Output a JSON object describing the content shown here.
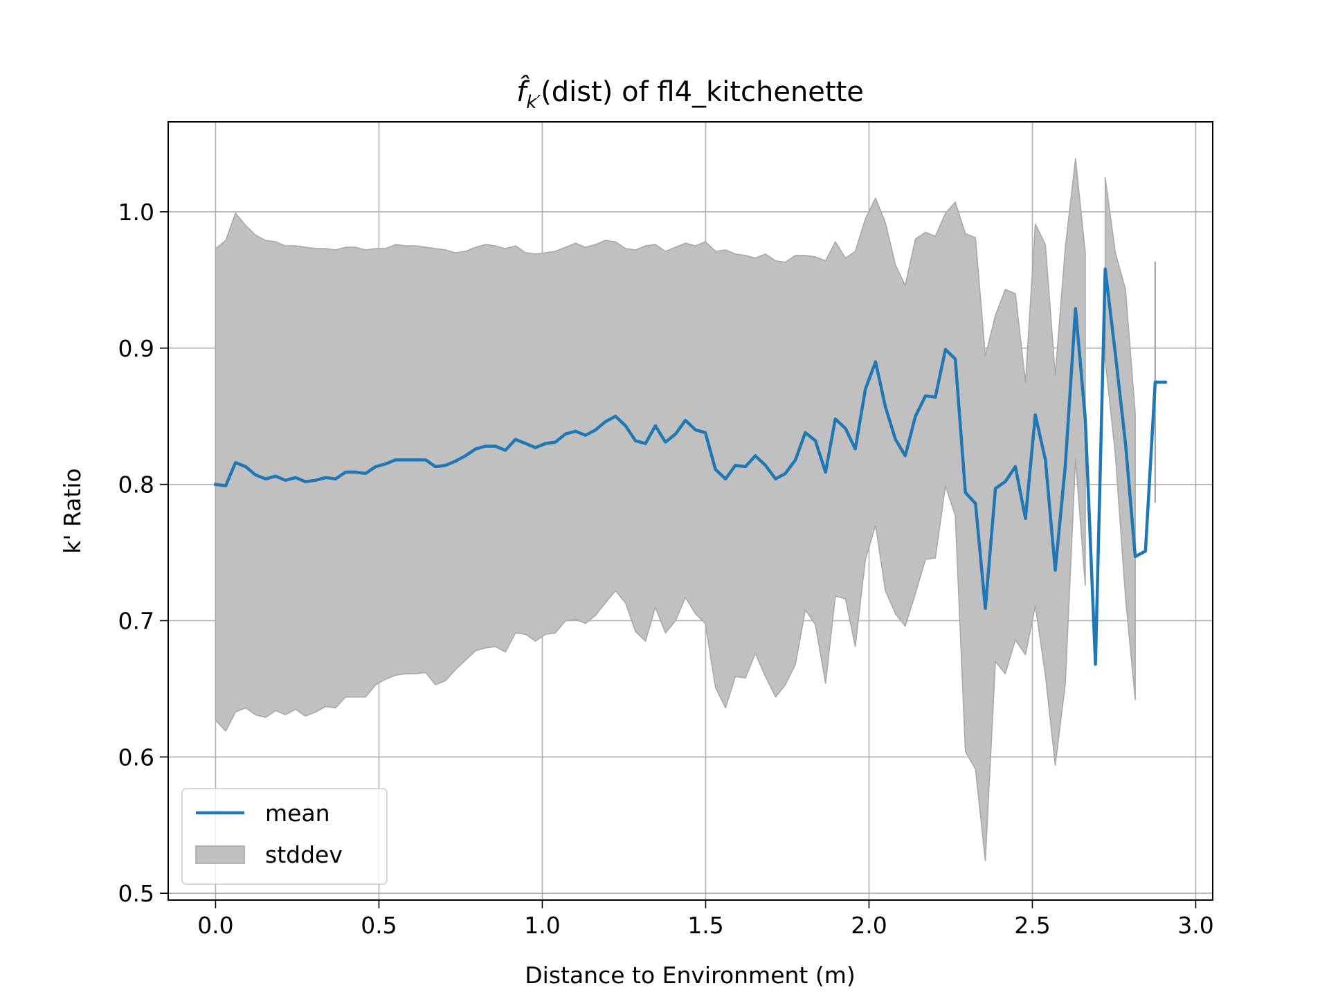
{
  "chart_data": {
    "type": "line",
    "title": {
      "symbol": "f̂",
      "subscript": "k′",
      "text": "(dist) of fl4_kitchenette"
    },
    "xlabel": "Distance to Environment (m)",
    "ylabel": "k' Ratio",
    "x": [
      0,
      0.031,
      0.061,
      0.092,
      0.122,
      0.153,
      0.184,
      0.214,
      0.245,
      0.275,
      0.306,
      0.337,
      0.367,
      0.398,
      0.428,
      0.459,
      0.49,
      0.52,
      0.551,
      0.581,
      0.612,
      0.643,
      0.673,
      0.704,
      0.734,
      0.765,
      0.796,
      0.826,
      0.857,
      0.887,
      0.918,
      0.949,
      0.979,
      1.01,
      1.04,
      1.071,
      1.102,
      1.132,
      1.163,
      1.193,
      1.224,
      1.255,
      1.285,
      1.316,
      1.346,
      1.377,
      1.408,
      1.438,
      1.469,
      1.499,
      1.53,
      1.561,
      1.591,
      1.622,
      1.652,
      1.683,
      1.714,
      1.744,
      1.775,
      1.805,
      1.836,
      1.867,
      1.897,
      1.928,
      1.958,
      1.989,
      2.02,
      2.05,
      2.081,
      2.111,
      2.142,
      2.173,
      2.203,
      2.234,
      2.264,
      2.295,
      2.326,
      2.356,
      2.387,
      2.417,
      2.448,
      2.479,
      2.509,
      2.54,
      2.57,
      2.601,
      2.632,
      2.662,
      2.693,
      2.723,
      2.754,
      2.785,
      2.815,
      2.846,
      2.876,
      2.907
    ],
    "series": [
      {
        "name": "mean",
        "color": "#1f77b4",
        "values": [
          0.8,
          0.799,
          0.816,
          0.813,
          0.807,
          0.804,
          0.806,
          0.803,
          0.805,
          0.802,
          0.803,
          0.805,
          0.804,
          0.809,
          0.809,
          0.808,
          0.813,
          0.815,
          0.818,
          0.818,
          0.818,
          0.818,
          0.813,
          0.814,
          0.817,
          0.821,
          0.826,
          0.828,
          0.828,
          0.825,
          0.833,
          0.83,
          0.827,
          0.83,
          0.831,
          0.837,
          0.839,
          0.836,
          0.84,
          0.846,
          0.85,
          0.843,
          0.832,
          0.83,
          0.843,
          0.831,
          0.837,
          0.847,
          0.84,
          0.838,
          0.811,
          0.804,
          0.814,
          0.813,
          0.821,
          0.814,
          0.804,
          0.808,
          0.818,
          0.838,
          0.832,
          0.809,
          0.848,
          0.841,
          0.826,
          0.87,
          0.89,
          0.857,
          0.833,
          0.821,
          0.85,
          0.865,
          0.864,
          0.899,
          0.892,
          0.794,
          0.786,
          0.709,
          0.797,
          0.802,
          0.813,
          0.775,
          0.851,
          0.818,
          0.737,
          0.814,
          0.929,
          0.848,
          0.668,
          0.958,
          0.896,
          0.83,
          0.747,
          0.751,
          0.875,
          0.875
        ]
      },
      {
        "name": "stddev",
        "color": "#c0c0c0",
        "edgecolor": "#a8a8a8",
        "values": [
          0.173,
          0.18,
          0.183,
          0.177,
          0.176,
          0.175,
          0.172,
          0.172,
          0.17,
          0.172,
          0.17,
          0.168,
          0.168,
          0.165,
          0.165,
          0.164,
          0.16,
          0.158,
          0.158,
          0.157,
          0.157,
          0.156,
          0.16,
          0.158,
          0.153,
          0.15,
          0.148,
          0.148,
          0.147,
          0.148,
          0.142,
          0.14,
          0.142,
          0.14,
          0.14,
          0.137,
          0.138,
          0.138,
          0.136,
          0.133,
          0.128,
          0.13,
          0.14,
          0.145,
          0.133,
          0.14,
          0.137,
          0.13,
          0.135,
          0.14,
          0.16,
          0.168,
          0.155,
          0.155,
          0.145,
          0.155,
          0.16,
          0.155,
          0.15,
          0.13,
          0.135,
          0.155,
          0.13,
          0.125,
          0.145,
          0.125,
          0.12,
          0.135,
          0.128,
          0.125,
          0.13,
          0.12,
          0.118,
          0.1,
          0.115,
          0.19,
          0.195,
          0.185,
          0.127,
          0.141,
          0.127,
          0.1,
          0.14,
          0.158,
          0.143,
          0.16,
          0.11,
          0.122,
          null,
          0.067,
          0.074,
          0.113,
          0.105,
          null,
          0.088,
          null
        ]
      }
    ],
    "xlim": [
      -0.145,
      3.052
    ],
    "ylim": [
      0.495,
      1.066
    ],
    "xticks": [
      {
        "value": 0,
        "label": "0.0"
      },
      0.5,
      {
        "value": 1,
        "label": "1.0"
      },
      1.5,
      {
        "value": 2,
        "label": "2.0"
      },
      2.5,
      {
        "value": 3,
        "label": "3.0"
      }
    ],
    "yticks": [
      0.5,
      0.6,
      0.7,
      0.8,
      0.9,
      {
        "value": 1,
        "label": "1.0"
      }
    ],
    "grid": true,
    "legend": "lower left"
  }
}
